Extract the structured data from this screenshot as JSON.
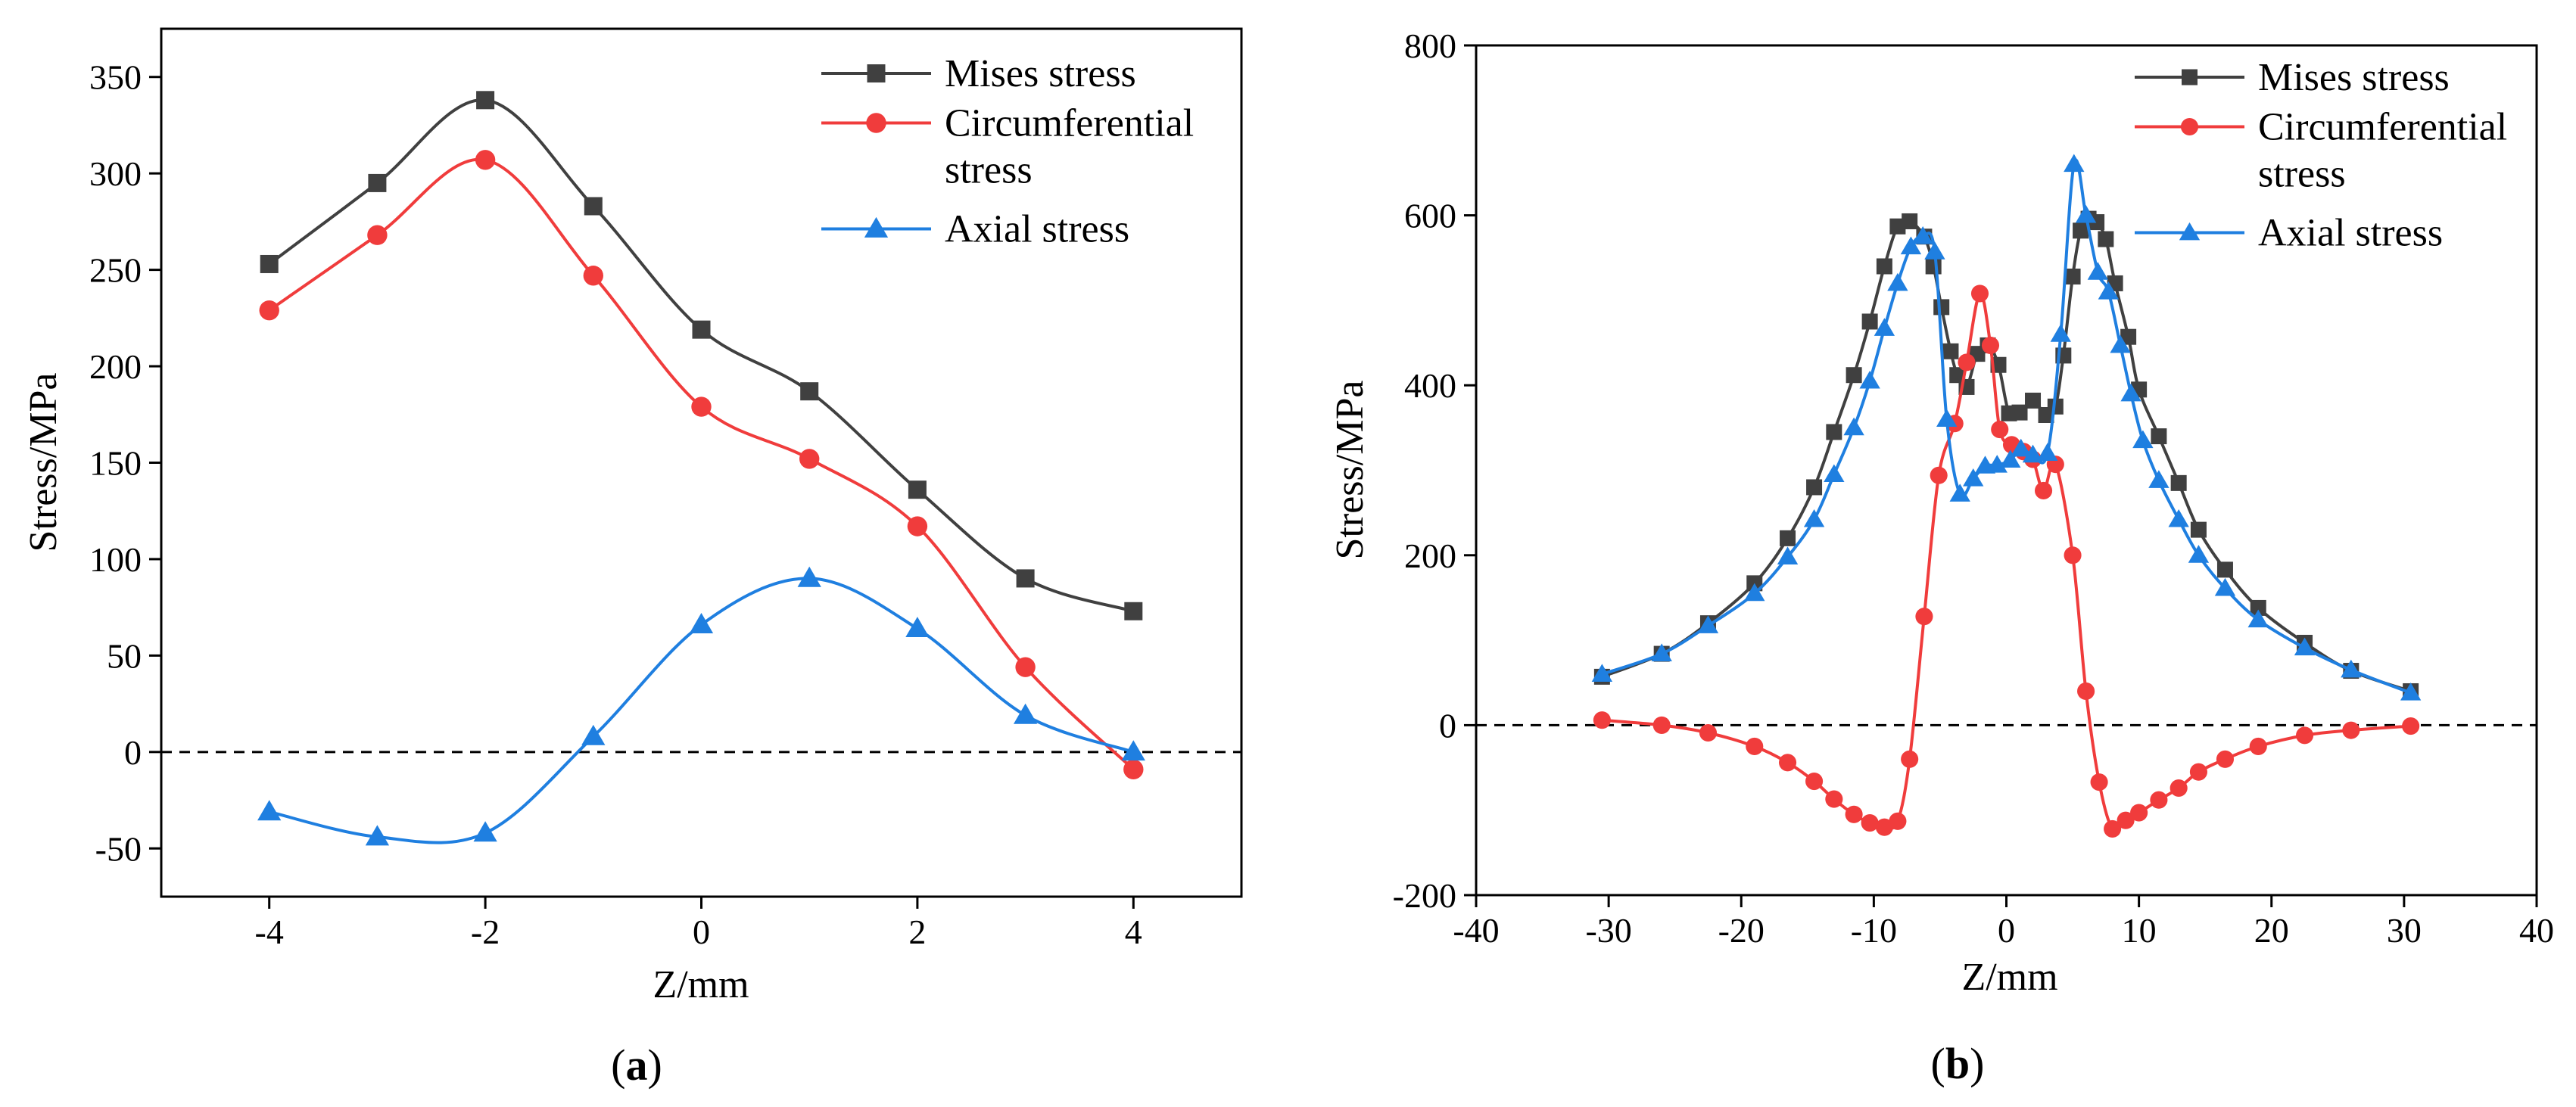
{
  "chart_data": [
    {
      "type": "line",
      "panel_label": "a",
      "xlabel": "Z/mm",
      "ylabel": "Stress/MPa",
      "xlim": [
        -5,
        5
      ],
      "ylim": [
        -75,
        375
      ],
      "xticks": [
        -4,
        -2,
        0,
        2,
        4
      ],
      "yticks": [
        -50,
        0,
        50,
        100,
        150,
        200,
        250,
        300,
        350
      ],
      "reference_line": 0,
      "legend_position": "top-right",
      "series": [
        {
          "name": "Mises stress",
          "color": "#404040",
          "marker": "square",
          "points": [
            [
              -4,
              253
            ],
            [
              -3,
              295
            ],
            [
              -2,
              338
            ],
            [
              -1,
              283
            ],
            [
              0,
              219
            ],
            [
              1,
              187
            ],
            [
              2,
              136
            ],
            [
              3,
              90
            ],
            [
              4,
              73
            ]
          ]
        },
        {
          "name": "Circumferential stress",
          "legend_lines": [
            "Circumferential",
            "stress"
          ],
          "color": "#f03c3c",
          "marker": "circle",
          "points": [
            [
              -4,
              229
            ],
            [
              -3,
              268
            ],
            [
              -2,
              307
            ],
            [
              -1,
              247
            ],
            [
              0,
              179
            ],
            [
              1,
              152
            ],
            [
              2,
              117
            ],
            [
              3,
              44
            ],
            [
              4,
              -9
            ]
          ]
        },
        {
          "name": "Axial stress",
          "color": "#1f7fe0",
          "marker": "triangle",
          "points": [
            [
              -4,
              -31
            ],
            [
              -3,
              -44
            ],
            [
              -2,
              -42
            ],
            [
              -1,
              8
            ],
            [
              0,
              66
            ],
            [
              1,
              90
            ],
            [
              2,
              64
            ],
            [
              3,
              19
            ],
            [
              4,
              0
            ]
          ]
        }
      ]
    },
    {
      "type": "line",
      "panel_label": "b",
      "xlabel": "Z/mm",
      "ylabel": "Stress/MPa",
      "xlim": [
        -40,
        40
      ],
      "ylim": [
        -200,
        800
      ],
      "xticks": [
        -40,
        -30,
        -20,
        -10,
        0,
        10,
        20,
        30,
        40
      ],
      "yticks": [
        -200,
        0,
        200,
        400,
        600,
        800
      ],
      "reference_line": 0,
      "legend_position": "top-right",
      "series": [
        {
          "name": "Mises stress",
          "color": "#404040",
          "marker": "square",
          "points": [
            [
              -30.5,
              57
            ],
            [
              -26,
              84
            ],
            [
              -22.5,
              120
            ],
            [
              -19,
              167
            ],
            [
              -16.5,
              220
            ],
            [
              -14.5,
              280
            ],
            [
              -13,
              345
            ],
            [
              -11.5,
              412
            ],
            [
              -10.3,
              475
            ],
            [
              -9.2,
              540
            ],
            [
              -8.2,
              587
            ],
            [
              -7.3,
              593
            ],
            [
              -6.2,
              575
            ],
            [
              -5.5,
              540
            ],
            [
              -4.9,
              492
            ],
            [
              -4.2,
              440
            ],
            [
              -3.7,
              412
            ],
            [
              -3,
              398
            ],
            [
              -2.2,
              437
            ],
            [
              -1.4,
              447
            ],
            [
              -0.6,
              424
            ],
            [
              0.2,
              367
            ],
            [
              1,
              368
            ],
            [
              2,
              382
            ],
            [
              3,
              365
            ],
            [
              3.7,
              375
            ],
            [
              4.3,
              435
            ],
            [
              5,
              528
            ],
            [
              5.6,
              582
            ],
            [
              6.2,
              596
            ],
            [
              6.8,
              592
            ],
            [
              7.5,
              572
            ],
            [
              8.2,
              520
            ],
            [
              9.2,
              457
            ],
            [
              10,
              395
            ],
            [
              11.5,
              340
            ],
            [
              13,
              285
            ],
            [
              14.5,
              230
            ],
            [
              16.5,
              183
            ],
            [
              19,
              138
            ],
            [
              22.5,
              97
            ],
            [
              26,
              64
            ],
            [
              30.5,
              40
            ]
          ]
        },
        {
          "name": "Circumferential stress",
          "legend_lines": [
            "Circumferential",
            "stress"
          ],
          "color": "#f03c3c",
          "marker": "circle",
          "points": [
            [
              -30.5,
              6
            ],
            [
              -26,
              0
            ],
            [
              -22.5,
              -9
            ],
            [
              -19,
              -25
            ],
            [
              -16.5,
              -44
            ],
            [
              -14.5,
              -66
            ],
            [
              -13,
              -87
            ],
            [
              -11.5,
              -105
            ],
            [
              -10.3,
              -115
            ],
            [
              -9.2,
              -120
            ],
            [
              -8.2,
              -113
            ],
            [
              -7.3,
              -40
            ],
            [
              -6.2,
              128
            ],
            [
              -5.1,
              294
            ],
            [
              -3.9,
              355
            ],
            [
              -3,
              427
            ],
            [
              -2,
              508
            ],
            [
              -1.2,
              447
            ],
            [
              -0.5,
              348
            ],
            [
              0.4,
              330
            ],
            [
              1.3,
              322
            ],
            [
              2,
              313
            ],
            [
              2.8,
              276
            ],
            [
              3.7,
              307
            ],
            [
              5,
              200
            ],
            [
              6,
              40
            ],
            [
              7,
              -67
            ],
            [
              8,
              -122
            ],
            [
              9,
              -112
            ],
            [
              10,
              -103
            ],
            [
              11.5,
              -88
            ],
            [
              13,
              -74
            ],
            [
              14.5,
              -55
            ],
            [
              16.5,
              -40
            ],
            [
              19,
              -25
            ],
            [
              22.5,
              -12
            ],
            [
              26,
              -6
            ],
            [
              30.5,
              -1
            ]
          ]
        },
        {
          "name": "Axial stress",
          "color": "#1f7fe0",
          "marker": "triangle",
          "points": [
            [
              -30.5,
              60
            ],
            [
              -26,
              84
            ],
            [
              -22.5,
              117
            ],
            [
              -19,
              155
            ],
            [
              -16.5,
              198
            ],
            [
              -14.5,
              242
            ],
            [
              -13,
              295
            ],
            [
              -11.5,
              350
            ],
            [
              -10.3,
              405
            ],
            [
              -9.2,
              467
            ],
            [
              -8.2,
              520
            ],
            [
              -7.2,
              563
            ],
            [
              -6.3,
              575
            ],
            [
              -5.4,
              557
            ],
            [
              -4.5,
              360
            ],
            [
              -3.5,
              272
            ],
            [
              -2.5,
              290
            ],
            [
              -1.6,
              305
            ],
            [
              -0.7,
              306
            ],
            [
              0.3,
              312
            ],
            [
              1.1,
              325
            ],
            [
              2,
              318
            ],
            [
              3.1,
              320
            ],
            [
              4.1,
              460
            ],
            [
              5.1,
              660
            ],
            [
              6,
              600
            ],
            [
              6.9,
              533
            ],
            [
              7.7,
              510
            ],
            [
              8.6,
              447
            ],
            [
              9.4,
              390
            ],
            [
              10.3,
              335
            ],
            [
              11.5,
              288
            ],
            [
              13,
              242
            ],
            [
              14.5,
              200
            ],
            [
              16.5,
              161
            ],
            [
              19,
              124
            ],
            [
              22.5,
              91
            ],
            [
              26,
              65
            ],
            [
              30.5,
              38
            ]
          ]
        }
      ]
    }
  ]
}
